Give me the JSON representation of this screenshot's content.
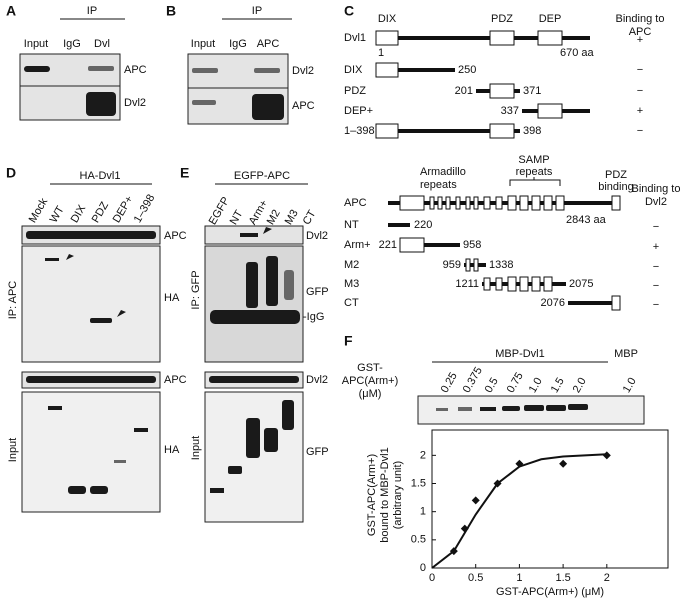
{
  "panel_a": {
    "label": "A",
    "ip": "IP",
    "lanes": [
      "Input",
      "IgG",
      "Dvl"
    ],
    "blots": [
      "APC",
      "Dvl2"
    ]
  },
  "panel_b": {
    "label": "B",
    "ip": "IP",
    "lanes": [
      "Input",
      "IgG",
      "APC"
    ],
    "blots": [
      "Dvl2",
      "APC"
    ]
  },
  "panel_c": {
    "label": "C",
    "dvl_domains": [
      "DIX",
      "PDZ",
      "DEP"
    ],
    "dvl_binding_header": [
      "Binding to",
      "APC"
    ],
    "dvl_rows": [
      {
        "name": "Dvl1",
        "start": "1",
        "end": "670 aa",
        "binding": "+"
      },
      {
        "name": "DIX",
        "end": "250",
        "binding": "−"
      },
      {
        "name": "PDZ",
        "start": "201",
        "end": "371",
        "binding": "−"
      },
      {
        "name": "DEP+",
        "start": "337",
        "binding": "+"
      },
      {
        "name": "1–398",
        "end": "398",
        "binding": "−"
      }
    ],
    "apc_domains": {
      "armadillo": [
        "Armadillo",
        "repeats"
      ],
      "samp": [
        "SAMP",
        "repeats"
      ],
      "pdz": [
        "PDZ",
        "binding"
      ]
    },
    "apc_binding_header": [
      "Binding to",
      "Dvl2"
    ],
    "apc_rows": [
      {
        "name": "APC",
        "end": "2843 aa"
      },
      {
        "name": "NT",
        "end": "220",
        "binding": "−"
      },
      {
        "name": "Arm+",
        "start": "221",
        "end": "958",
        "binding": "+"
      },
      {
        "name": "M2",
        "start": "959",
        "end": "1338",
        "binding": "−"
      },
      {
        "name": "M3",
        "start": "1211",
        "end": "2075",
        "binding": "−"
      },
      {
        "name": "CT",
        "start": "2076",
        "binding": "−"
      }
    ]
  },
  "panel_d": {
    "label": "D",
    "header": "HA-Dvl1",
    "lanes": [
      "Mock",
      "WT",
      "DIX",
      "PDZ",
      "DEP+",
      "1–398"
    ],
    "sections": [
      "IP: APC",
      "Input"
    ],
    "blots": [
      "APC",
      "HA",
      "APC",
      "HA"
    ]
  },
  "panel_e": {
    "label": "E",
    "header": "EGFP-APC",
    "lanes": [
      "EGFP",
      "NT",
      "Arm+",
      "M2",
      "M3",
      "CT"
    ],
    "sections": [
      "IP: GFP",
      "Input"
    ],
    "blots": [
      "Dvl2",
      "GFP",
      "-IgG",
      "Dvl2",
      "GFP"
    ]
  },
  "panel_f": {
    "label": "F",
    "header": "MBP-Dvl1",
    "control": "MBP",
    "row_label": [
      "GST-",
      "APC(Arm+)",
      "(μM)"
    ],
    "lanes": [
      "0.25",
      "0.375",
      "0.5",
      "0.75",
      "1.0",
      "1.5",
      "2.0",
      "1.0"
    ]
  },
  "chart_data": {
    "type": "scatter",
    "x_label": "GST-APC(Arm+) (μM)",
    "y_label": [
      "GST-APC(Arm+)",
      "bound to MBP-Dvl1",
      "(arbitrary unit)"
    ],
    "x": [
      0.25,
      0.375,
      0.5,
      0.75,
      1.0,
      1.5,
      2.0
    ],
    "values": [
      0.3,
      0.7,
      1.2,
      1.5,
      1.85,
      1.85,
      2.0
    ],
    "fit": {
      "x": [
        0,
        0.25,
        0.5,
        0.75,
        1,
        1.25,
        1.5,
        1.75,
        2
      ],
      "y": [
        0,
        0.3,
        0.95,
        1.5,
        1.8,
        1.93,
        1.98,
        2.0,
        2.02
      ]
    },
    "xlim": [
      0,
      2.7
    ],
    "ylim": [
      0,
      2.45
    ],
    "xticks": [
      0,
      0.5,
      1,
      1.5,
      2
    ],
    "yticks": [
      0,
      0.5,
      1,
      1.5,
      2
    ],
    "color": "#111111"
  }
}
